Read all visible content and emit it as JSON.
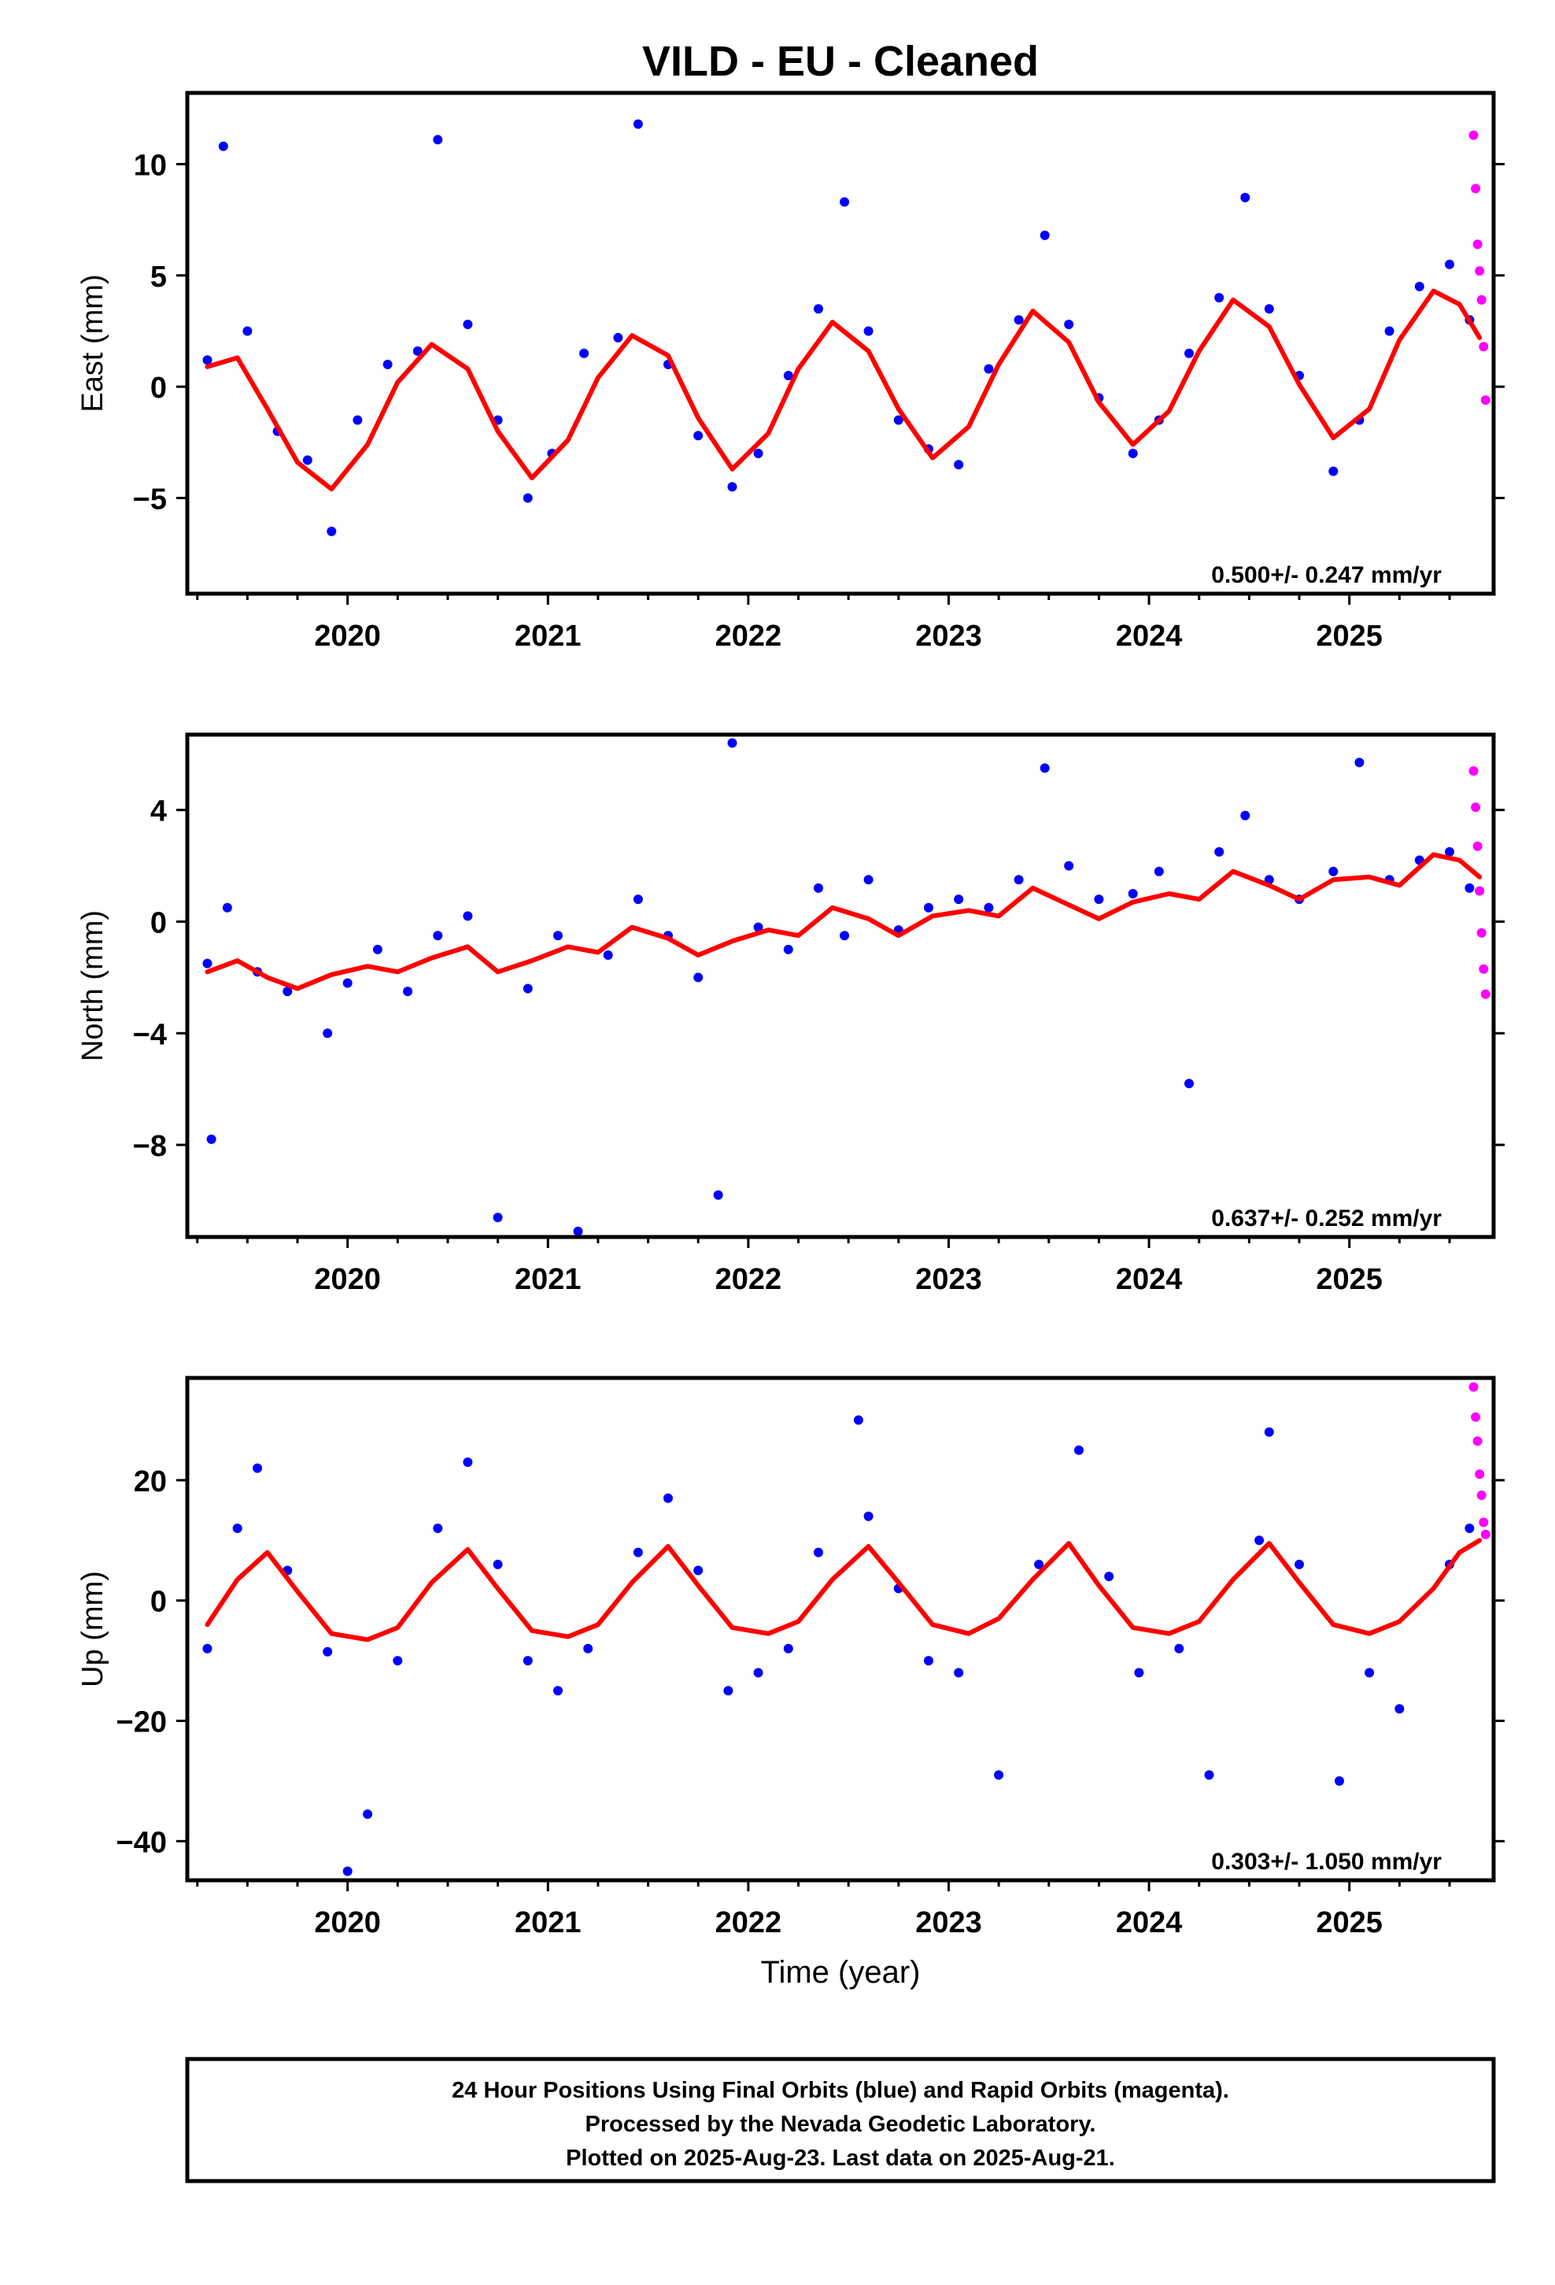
{
  "title": "VILD  - EU - Cleaned",
  "xlabel": "Time (year)",
  "footer": {
    "lines": [
      "24 Hour Positions Using Final Orbits (blue) and Rapid Orbits (magenta).",
      "Processed by the Nevada Geodetic Laboratory.",
      "Plotted on 2025-Aug-23. Last data on 2025-Aug-21."
    ]
  },
  "colors": {
    "final_orbits": "#0000ff",
    "rapid_orbits": "#ff00ff",
    "model_fit": "#ff0000",
    "frame": "#000000"
  },
  "chart_data": [
    {
      "type": "scatter",
      "component": "east",
      "ylabel": "East (mm)",
      "xlim": [
        2019.2,
        2025.72
      ],
      "ylim": [
        -9.3,
        13.2
      ],
      "yticks": [
        -5,
        0,
        5,
        10
      ],
      "xticks": [
        2020,
        2021,
        2022,
        2023,
        2024,
        2025
      ],
      "xtick_labels": [
        "2020",
        "2021",
        "2022",
        "2023",
        "2024",
        "2025"
      ],
      "rate_label": "0.500+/- 0.247 mm/yr",
      "grid": false,
      "legend": "none",
      "model_fit": {
        "x": [
          2019.3,
          2019.45,
          2019.6,
          2019.75,
          2019.92,
          2020.1,
          2020.25,
          2020.42,
          2020.6,
          2020.75,
          2020.92,
          2021.1,
          2021.25,
          2021.42,
          2021.6,
          2021.75,
          2021.92,
          2022.1,
          2022.25,
          2022.42,
          2022.6,
          2022.75,
          2022.92,
          2023.1,
          2023.25,
          2023.42,
          2023.6,
          2023.75,
          2023.92,
          2024.1,
          2024.25,
          2024.42,
          2024.6,
          2024.75,
          2024.92,
          2025.1,
          2025.25,
          2025.42,
          2025.55,
          2025.65
        ],
        "y": [
          0.9,
          1.3,
          -1.0,
          -3.4,
          -4.6,
          -2.6,
          0.2,
          1.9,
          0.8,
          -2.0,
          -4.1,
          -2.4,
          0.4,
          2.3,
          1.4,
          -1.4,
          -3.7,
          -2.1,
          0.8,
          2.9,
          1.6,
          -1.0,
          -3.2,
          -1.8,
          1.0,
          3.4,
          2.0,
          -0.7,
          -2.6,
          -1.1,
          1.6,
          3.9,
          2.7,
          0.1,
          -2.3,
          -1.0,
          2.1,
          4.3,
          3.7,
          2.2
        ]
      },
      "final_orbits": {
        "x": [
          2019.3,
          2019.38,
          2019.5,
          2019.65,
          2019.8,
          2019.92,
          2020.05,
          2020.2,
          2020.35,
          2020.45,
          2020.6,
          2020.75,
          2020.9,
          2021.02,
          2021.18,
          2021.35,
          2021.45,
          2021.6,
          2021.75,
          2021.92,
          2022.05,
          2022.2,
          2022.35,
          2022.48,
          2022.6,
          2022.75,
          2022.9,
          2023.05,
          2023.2,
          2023.35,
          2023.48,
          2023.6,
          2023.75,
          2023.92,
          2024.05,
          2024.2,
          2024.35,
          2024.48,
          2024.6,
          2024.75,
          2024.92,
          2025.05,
          2025.2,
          2025.35,
          2025.5,
          2025.6
        ],
        "y": [
          1.2,
          10.8,
          2.5,
          -2.0,
          -3.3,
          -6.5,
          -1.5,
          1.0,
          1.6,
          11.1,
          2.8,
          -1.5,
          -5.0,
          -3.0,
          1.5,
          2.2,
          11.8,
          1.0,
          -2.2,
          -4.5,
          -3.0,
          0.5,
          3.5,
          8.3,
          2.5,
          -1.5,
          -2.8,
          -3.5,
          0.8,
          3.0,
          6.8,
          2.8,
          -0.5,
          -3.0,
          -1.5,
          1.5,
          4.0,
          8.5,
          3.5,
          0.5,
          -3.8,
          -1.5,
          2.5,
          4.5,
          5.5,
          3.0
        ]
      },
      "rapid_orbits": {
        "x": [
          2025.62,
          2025.63,
          2025.64,
          2025.65,
          2025.66,
          2025.67,
          2025.68
        ],
        "y": [
          11.3,
          8.9,
          6.4,
          5.2,
          3.9,
          1.8,
          -0.6
        ]
      }
    },
    {
      "type": "scatter",
      "component": "north",
      "ylabel": "North (mm)",
      "xlim": [
        2019.2,
        2025.72
      ],
      "ylim": [
        -11.3,
        6.7
      ],
      "yticks": [
        -8,
        -4,
        0,
        4
      ],
      "xticks": [
        2020,
        2021,
        2022,
        2023,
        2024,
        2025
      ],
      "xtick_labels": [
        "2020",
        "2021",
        "2022",
        "2023",
        "2024",
        "2025"
      ],
      "rate_label": "0.637+/- 0.252 mm/yr",
      "grid": false,
      "legend": "none",
      "model_fit": {
        "x": [
          2019.3,
          2019.45,
          2019.6,
          2019.75,
          2019.92,
          2020.1,
          2020.25,
          2020.42,
          2020.6,
          2020.75,
          2020.92,
          2021.1,
          2021.25,
          2021.42,
          2021.6,
          2021.75,
          2021.92,
          2022.1,
          2022.25,
          2022.42,
          2022.6,
          2022.75,
          2022.92,
          2023.1,
          2023.25,
          2023.42,
          2023.6,
          2023.75,
          2023.92,
          2024.1,
          2024.25,
          2024.42,
          2024.6,
          2024.75,
          2024.92,
          2025.1,
          2025.25,
          2025.42,
          2025.55,
          2025.65
        ],
        "y": [
          -1.8,
          -1.4,
          -2.0,
          -2.4,
          -1.9,
          -1.6,
          -1.8,
          -1.3,
          -0.9,
          -1.8,
          -1.4,
          -0.9,
          -1.1,
          -0.2,
          -0.6,
          -1.2,
          -0.7,
          -0.3,
          -0.5,
          0.5,
          0.1,
          -0.5,
          0.2,
          0.4,
          0.2,
          1.2,
          0.6,
          0.1,
          0.7,
          1.0,
          0.8,
          1.8,
          1.3,
          0.8,
          1.5,
          1.6,
          1.3,
          2.4,
          2.2,
          1.6
        ]
      },
      "final_orbits": {
        "x": [
          2019.3,
          2019.32,
          2019.4,
          2019.55,
          2019.7,
          2019.9,
          2020.0,
          2020.15,
          2020.3,
          2020.45,
          2020.6,
          2020.75,
          2020.9,
          2021.05,
          2021.15,
          2021.3,
          2021.45,
          2021.6,
          2021.75,
          2021.85,
          2021.92,
          2022.05,
          2022.2,
          2022.35,
          2022.48,
          2022.6,
          2022.75,
          2022.9,
          2023.05,
          2023.2,
          2023.35,
          2023.48,
          2023.6,
          2023.75,
          2023.92,
          2024.05,
          2024.2,
          2024.35,
          2024.48,
          2024.6,
          2024.75,
          2024.92,
          2025.05,
          2025.2,
          2025.35,
          2025.5,
          2025.6
        ],
        "y": [
          -1.5,
          -7.8,
          0.5,
          -1.8,
          -2.5,
          -4.0,
          -2.2,
          -1.0,
          -2.5,
          -0.5,
          0.2,
          -10.6,
          -2.4,
          -0.5,
          -11.1,
          -1.2,
          0.8,
          -0.5,
          -2.0,
          -9.8,
          6.4,
          -0.2,
          -1.0,
          1.2,
          -0.5,
          1.5,
          -0.3,
          0.5,
          0.8,
          0.5,
          1.5,
          5.5,
          2.0,
          0.8,
          1.0,
          1.8,
          -5.8,
          2.5,
          3.8,
          1.5,
          0.8,
          1.8,
          5.7,
          1.5,
          2.2,
          2.5,
          1.2
        ]
      },
      "rapid_orbits": {
        "x": [
          2025.62,
          2025.63,
          2025.64,
          2025.65,
          2025.66,
          2025.67,
          2025.68
        ],
        "y": [
          5.4,
          4.1,
          2.7,
          1.1,
          -0.4,
          -1.7,
          -2.6
        ]
      }
    },
    {
      "type": "scatter",
      "component": "up",
      "ylabel": "Up (mm)",
      "xlim": [
        2019.2,
        2025.72
      ],
      "ylim": [
        -46.5,
        37.0
      ],
      "yticks": [
        -40,
        -20,
        0,
        20
      ],
      "xticks": [
        2020,
        2021,
        2022,
        2023,
        2024,
        2025
      ],
      "xtick_labels": [
        "2020",
        "2021",
        "2022",
        "2023",
        "2024",
        "2025"
      ],
      "rate_label": "0.303+/- 1.050 mm/yr",
      "grid": false,
      "legend": "none",
      "model_fit": {
        "x": [
          2019.3,
          2019.45,
          2019.6,
          2019.75,
          2019.92,
          2020.1,
          2020.25,
          2020.42,
          2020.6,
          2020.75,
          2020.92,
          2021.1,
          2021.25,
          2021.42,
          2021.6,
          2021.75,
          2021.92,
          2022.1,
          2022.25,
          2022.42,
          2022.6,
          2022.75,
          2022.92,
          2023.1,
          2023.25,
          2023.42,
          2023.6,
          2023.75,
          2023.92,
          2024.1,
          2024.25,
          2024.42,
          2024.6,
          2024.75,
          2024.92,
          2025.1,
          2025.25,
          2025.42,
          2025.55,
          2025.65
        ],
        "y": [
          -4.0,
          3.5,
          8.0,
          1.5,
          -5.5,
          -6.5,
          -4.5,
          3.0,
          8.5,
          2.0,
          -5.0,
          -6.0,
          -4.0,
          3.0,
          9.0,
          2.5,
          -4.5,
          -5.5,
          -3.5,
          3.5,
          9.0,
          3.0,
          -4.0,
          -5.5,
          -3.0,
          3.5,
          9.5,
          2.5,
          -4.5,
          -5.5,
          -3.5,
          3.5,
          9.5,
          3.0,
          -4.0,
          -5.5,
          -3.5,
          2.0,
          8.0,
          10.0
        ]
      },
      "final_orbits": {
        "x": [
          2019.3,
          2019.45,
          2019.55,
          2019.7,
          2019.9,
          2020.0,
          2020.1,
          2020.25,
          2020.45,
          2020.6,
          2020.75,
          2020.9,
          2021.05,
          2021.2,
          2021.45,
          2021.6,
          2021.75,
          2021.9,
          2022.05,
          2022.2,
          2022.35,
          2022.55,
          2022.6,
          2022.75,
          2022.9,
          2023.05,
          2023.25,
          2023.45,
          2023.65,
          2023.8,
          2023.95,
          2024.15,
          2024.3,
          2024.55,
          2024.6,
          2024.75,
          2024.95,
          2025.1,
          2025.25,
          2025.5,
          2025.6
        ],
        "y": [
          -8.0,
          12.0,
          22.0,
          5.0,
          -8.5,
          -45.0,
          -35.5,
          -10.0,
          12.0,
          23.0,
          6.0,
          -10.0,
          -15.0,
          -8.0,
          8.0,
          17.0,
          5.0,
          -15.0,
          -12.0,
          -8.0,
          8.0,
          30.0,
          14.0,
          2.0,
          -10.0,
          -12.0,
          -29.0,
          6.0,
          25.0,
          4.0,
          -12.0,
          -8.0,
          -29.0,
          10.0,
          28.0,
          6.0,
          -30.0,
          -12.0,
          -18.0,
          6.0,
          12.0
        ]
      },
      "rapid_orbits": {
        "x": [
          2025.62,
          2025.63,
          2025.64,
          2025.65,
          2025.66,
          2025.67,
          2025.68
        ],
        "y": [
          35.5,
          30.5,
          26.5,
          21.0,
          17.5,
          13.0,
          11.0
        ]
      }
    }
  ]
}
